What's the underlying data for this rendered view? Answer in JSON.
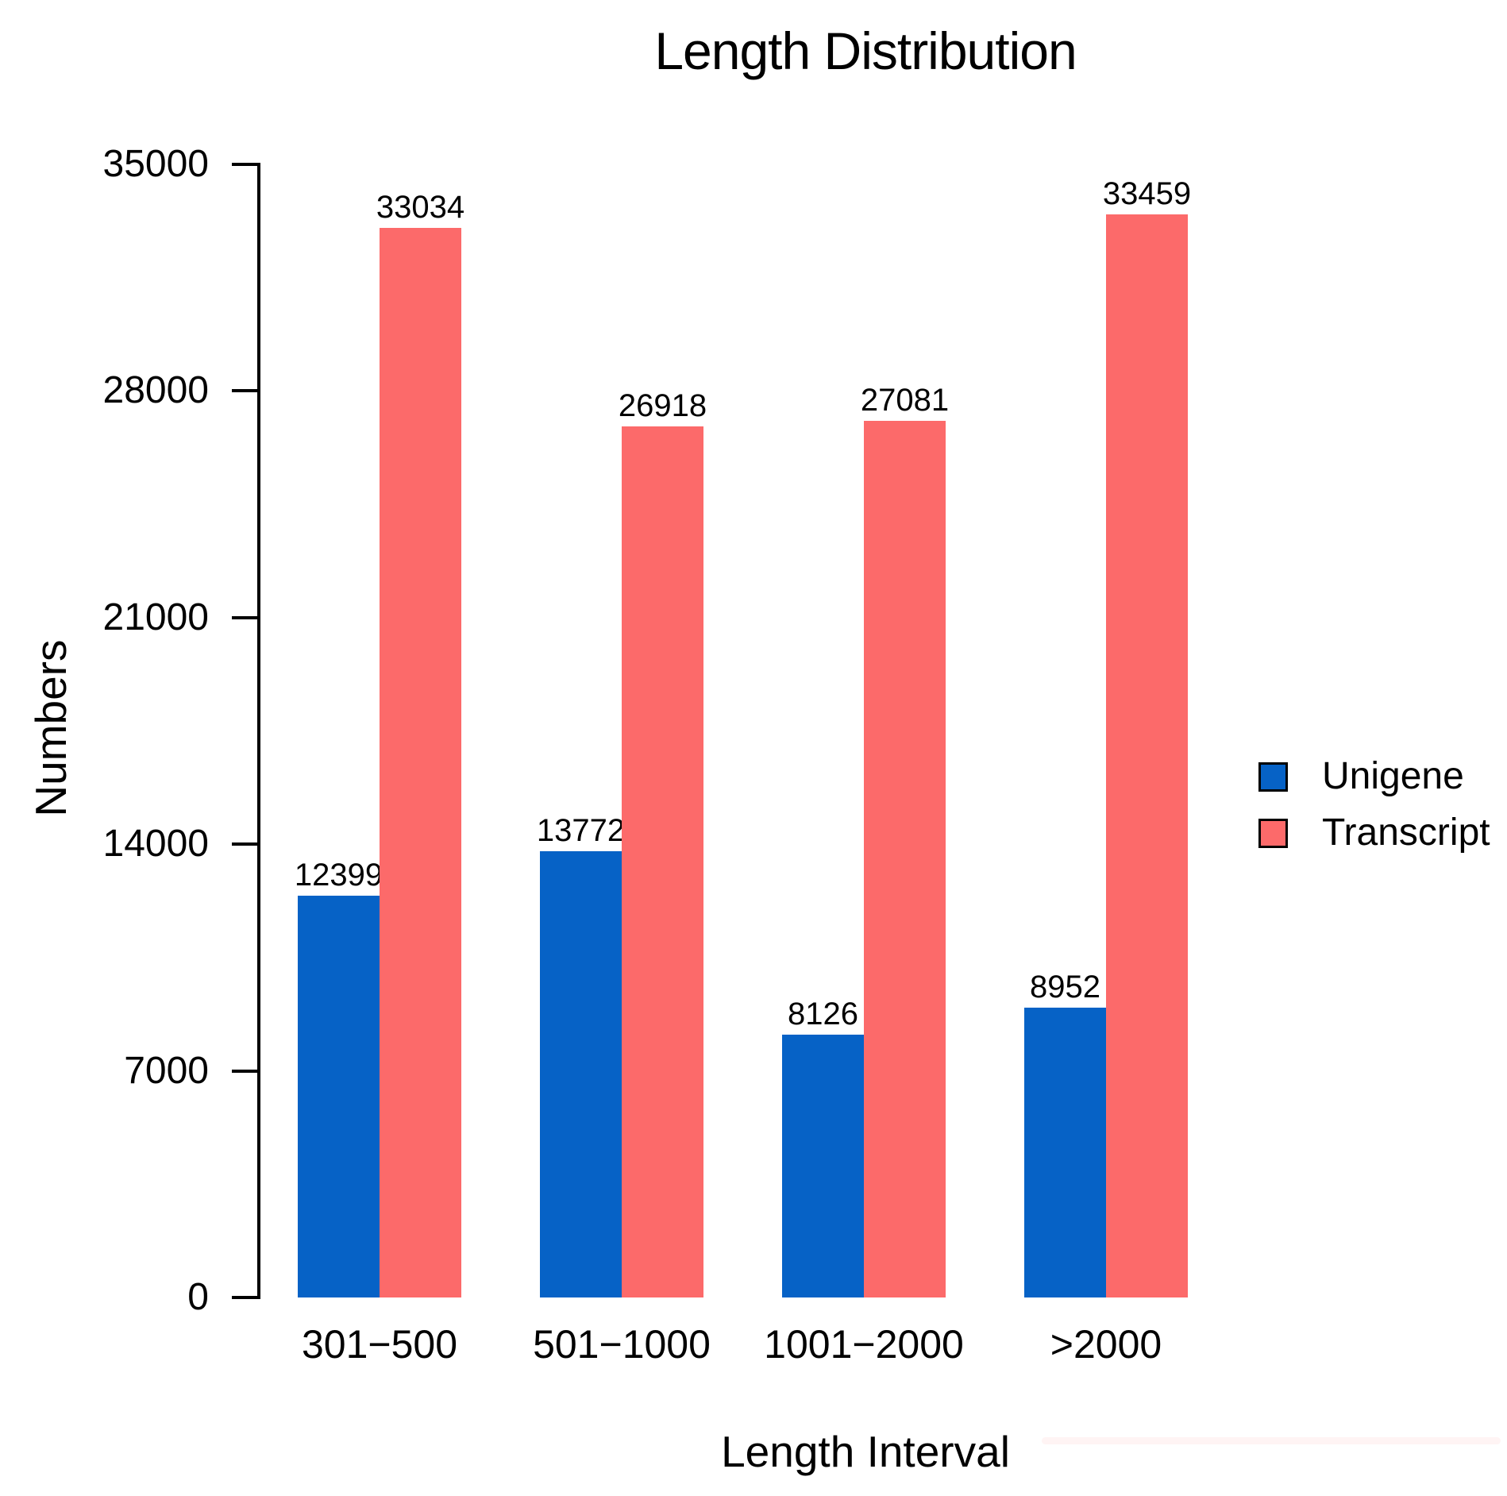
{
  "title": "Length Distribution",
  "chart_data": {
    "type": "bar",
    "title": "Length Distribution",
    "xlabel": "Length Interval",
    "ylabel": "Numbers",
    "categories": [
      "301−500",
      "501−1000",
      "1001−2000",
      ">2000"
    ],
    "series": [
      {
        "name": "Unigene",
        "color": "#0662C6",
        "values": [
          12399,
          13772,
          8126,
          8952
        ]
      },
      {
        "name": "Transcript",
        "color": "#FC6A6A",
        "values": [
          33034,
          26918,
          27081,
          33459
        ]
      }
    ],
    "ylim": [
      0,
      35000
    ],
    "yticks": [
      0,
      7000,
      14000,
      21000,
      28000,
      35000
    ],
    "grid": false,
    "bar_value_labels": true,
    "legend_position": "right"
  },
  "legend": {
    "items": [
      {
        "label": "Unigene",
        "color": "#0662C6"
      },
      {
        "label": "Transcript",
        "color": "#FC6A6A"
      }
    ]
  },
  "colors": {
    "axis": "#000000",
    "text": "#000000",
    "background": "#FFFFFF",
    "faint_strip": "#FFF4F4"
  }
}
